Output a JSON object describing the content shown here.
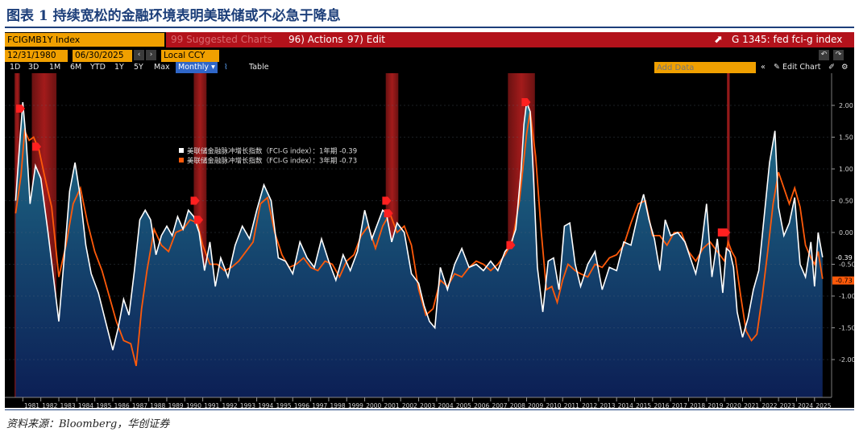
{
  "caption": "图表 1 持续宽松的金融环境表明美联储或不必急于降息",
  "source": "资料来源：Bloomberg，华创证券",
  "terminal": {
    "ticker": "FCIGMB1Y Index",
    "suggested": "99 Suggested Charts",
    "actions": "96) Actions",
    "edit": "97) Edit",
    "title": "G 1345: fed fci-g index",
    "start_date": "12/31/1980",
    "end_date": "06/30/2025",
    "currency": "Local CCY",
    "periods": [
      "1D",
      "3D",
      "1M",
      "6M",
      "YTD",
      "1Y",
      "5Y",
      "Max"
    ],
    "frequency": "Monthly",
    "table_label": "Table",
    "add_data_placeholder": "Add Data",
    "edit_chart": "Edit Chart"
  },
  "colors": {
    "bg": "#000000",
    "area_top": "#1f6f8a",
    "area_bottom": "#0c1f55",
    "white": "#ffffff",
    "orange": "#ff5a0a",
    "recession": "#a01818",
    "bloomberg_orange": "#f0a000",
    "bloomberg_red": "#b3121b"
  },
  "chart_data": {
    "type": "line",
    "title": "",
    "xlabel": "",
    "ylabel": "",
    "ylim": [
      -2.6,
      2.6
    ],
    "yticks": [
      "2.00",
      "1.50",
      "1.00",
      "0.50",
      "0.00",
      "-0.50",
      "-1.00",
      "-1.50",
      "-2.00"
    ],
    "xticks": [
      "1981",
      "1982",
      "1983",
      "1984",
      "1985",
      "1986",
      "1987",
      "1988",
      "1989",
      "1990",
      "1991",
      "1992",
      "1993",
      "1994",
      "1995",
      "1996",
      "1997",
      "1998",
      "1999",
      "2000",
      "2001",
      "2002",
      "2003",
      "2004",
      "2005",
      "2006",
      "2007",
      "2008",
      "2009",
      "2010",
      "2011",
      "2012",
      "2013",
      "2014",
      "2015",
      "2016",
      "2017",
      "2018",
      "2019",
      "2020",
      "2021",
      "2022",
      "2023",
      "2024",
      "2025"
    ],
    "legend": [
      {
        "name": "美联储金融脉冲增长指数（FCI-G index）：1年期 -0.39",
        "color": "#ffffff"
      },
      {
        "name": "美联储金融脉冲增长指数（FCI-G index）：3年期 -0.73",
        "color": "#ff5a0a"
      }
    ],
    "last_value_labels": [
      {
        "text": "-0.39",
        "value": -0.39,
        "color": "#ffffff"
      },
      {
        "text": "-0.73",
        "value": -0.73,
        "color": "#ff5a0a"
      }
    ],
    "recessions": [
      [
        1980.54,
        1980.83
      ],
      [
        1981.5,
        1982.87
      ],
      [
        1990.5,
        1991.21
      ],
      [
        2001.17,
        2001.87
      ],
      [
        2007.96,
        2009.46
      ],
      [
        2020.13,
        2020.29
      ]
    ],
    "series": [
      {
        "name": "1年期",
        "color": "#ffffff",
        "x": [
          1980.6,
          1980.85,
          1981.0,
          1981.2,
          1981.4,
          1981.7,
          1982.0,
          1982.4,
          1982.7,
          1983.0,
          1983.3,
          1983.6,
          1983.9,
          1984.2,
          1984.5,
          1984.8,
          1985.2,
          1985.6,
          1986.0,
          1986.3,
          1986.6,
          1986.9,
          1987.2,
          1987.5,
          1987.8,
          1988.1,
          1988.4,
          1988.7,
          1989.0,
          1989.3,
          1989.6,
          1989.9,
          1990.2,
          1990.5,
          1990.8,
          1991.1,
          1991.4,
          1991.7,
          1992.0,
          1992.4,
          1992.8,
          1993.2,
          1993.6,
          1994.0,
          1994.4,
          1994.8,
          1995.2,
          1995.6,
          1996.0,
          1996.4,
          1996.8,
          1997.2,
          1997.6,
          1998.0,
          1998.4,
          1998.8,
          1999.2,
          1999.6,
          2000.0,
          2000.4,
          2000.8,
          2001.0,
          2001.2,
          2001.5,
          2001.8,
          2002.2,
          2002.6,
          2003.0,
          2003.3,
          2003.6,
          2003.9,
          2004.2,
          2004.6,
          2005.0,
          2005.4,
          2005.8,
          2006.2,
          2006.6,
          2007.0,
          2007.4,
          2007.8,
          2008.1,
          2008.4,
          2008.7,
          2008.85,
          2009.0,
          2009.2,
          2009.4,
          2009.6,
          2009.9,
          2010.2,
          2010.5,
          2010.8,
          2011.1,
          2011.4,
          2011.7,
          2012.0,
          2012.4,
          2012.8,
          2013.2,
          2013.6,
          2014.0,
          2014.4,
          2014.8,
          2015.2,
          2015.5,
          2015.8,
          2016.1,
          2016.4,
          2016.7,
          2017.0,
          2017.4,
          2017.8,
          2018.1,
          2018.4,
          2018.7,
          2019.0,
          2019.3,
          2019.6,
          2019.9,
          2020.1,
          2020.3,
          2020.5,
          2020.7,
          2021.0,
          2021.3,
          2021.6,
          2021.9,
          2022.2,
          2022.5,
          2022.8,
          2023.0,
          2023.3,
          2023.6,
          2023.9,
          2024.2,
          2024.5,
          2024.8,
          2025.0,
          2025.2,
          2025.45
        ],
        "y": [
          0.5,
          1.5,
          2.05,
          1.4,
          0.45,
          1.05,
          0.85,
          0.0,
          -0.7,
          -1.4,
          -0.4,
          0.65,
          1.1,
          0.55,
          -0.2,
          -0.65,
          -0.95,
          -1.4,
          -1.85,
          -1.5,
          -1.05,
          -1.3,
          -0.6,
          0.2,
          0.35,
          0.2,
          -0.35,
          -0.05,
          0.1,
          -0.05,
          0.25,
          0.05,
          0.35,
          0.25,
          0.0,
          -0.6,
          -0.15,
          -0.85,
          -0.4,
          -0.7,
          -0.2,
          0.1,
          -0.1,
          0.35,
          0.75,
          0.5,
          -0.4,
          -0.45,
          -0.65,
          -0.15,
          -0.4,
          -0.55,
          -0.1,
          -0.45,
          -0.75,
          -0.35,
          -0.6,
          -0.3,
          0.35,
          -0.1,
          0.2,
          0.35,
          0.3,
          -0.15,
          0.15,
          0.0,
          -0.65,
          -0.8,
          -1.15,
          -1.4,
          -1.5,
          -0.55,
          -0.9,
          -0.5,
          -0.25,
          -0.55,
          -0.5,
          -0.6,
          -0.45,
          -0.6,
          -0.3,
          -0.2,
          0.05,
          1.0,
          1.7,
          2.05,
          1.9,
          0.75,
          -0.55,
          -1.25,
          -0.45,
          -0.4,
          -0.9,
          0.1,
          0.15,
          -0.5,
          -0.85,
          -0.5,
          -0.3,
          -0.9,
          -0.55,
          -0.6,
          -0.15,
          -0.2,
          0.3,
          0.6,
          0.2,
          -0.1,
          -0.6,
          0.2,
          -0.05,
          0.0,
          -0.15,
          -0.4,
          -0.65,
          -0.25,
          0.45,
          -0.7,
          -0.1,
          -0.95,
          -0.25,
          -0.3,
          -0.55,
          -1.25,
          -1.65,
          -1.35,
          -0.9,
          -0.6,
          0.25,
          1.1,
          1.6,
          0.4,
          -0.05,
          0.15,
          0.55,
          -0.5,
          -0.7,
          -0.15,
          -0.85,
          0.0,
          -0.39
        ]
      },
      {
        "name": "3年期",
        "color": "#ff5a0a",
        "x": [
          1980.6,
          1980.9,
          1981.1,
          1981.35,
          1981.6,
          1981.9,
          1982.2,
          1982.6,
          1983.0,
          1983.4,
          1983.8,
          1984.2,
          1984.6,
          1985.0,
          1985.4,
          1985.8,
          1986.2,
          1986.6,
          1987.0,
          1987.3,
          1987.6,
          1987.9,
          1988.3,
          1988.7,
          1989.1,
          1989.5,
          1989.9,
          1990.3,
          1990.7,
          1991.0,
          1991.4,
          1991.8,
          1992.2,
          1992.6,
          1993.0,
          1993.4,
          1993.8,
          1994.2,
          1994.6,
          1995.0,
          1995.4,
          1995.8,
          1996.2,
          1996.6,
          1997.0,
          1997.4,
          1997.8,
          1998.2,
          1998.6,
          1999.0,
          1999.4,
          1999.8,
          2000.2,
          2000.6,
          2001.0,
          2001.4,
          2001.8,
          2002.2,
          2002.6,
          2003.0,
          2003.4,
          2003.8,
          2004.2,
          2004.6,
          2005.0,
          2005.4,
          2005.8,
          2006.2,
          2006.6,
          2007.0,
          2007.4,
          2007.8,
          2008.2,
          2008.6,
          2009.0,
          2009.2,
          2009.5,
          2009.8,
          2010.1,
          2010.4,
          2010.7,
          2011.0,
          2011.3,
          2011.7,
          2012.0,
          2012.4,
          2012.8,
          2013.2,
          2013.6,
          2014.0,
          2014.4,
          2014.8,
          2015.2,
          2015.6,
          2016.0,
          2016.4,
          2016.8,
          2017.2,
          2017.6,
          2018.0,
          2018.4,
          2018.8,
          2019.2,
          2019.6,
          2020.0,
          2020.2,
          2020.4,
          2020.6,
          2020.9,
          2021.2,
          2021.5,
          2021.8,
          2022.1,
          2022.4,
          2022.7,
          2023.0,
          2023.3,
          2023.6,
          2023.9,
          2024.2,
          2024.5,
          2024.8,
          2025.0,
          2025.2,
          2025.45
        ],
        "y": [
          0.3,
          0.9,
          1.6,
          1.45,
          1.5,
          1.3,
          0.9,
          0.4,
          -0.7,
          -0.2,
          0.45,
          0.7,
          0.15,
          -0.3,
          -0.6,
          -1.0,
          -1.4,
          -1.7,
          -1.75,
          -2.1,
          -1.2,
          -0.6,
          0.05,
          -0.2,
          -0.3,
          0.0,
          0.05,
          0.2,
          0.15,
          -0.2,
          -0.5,
          -0.5,
          -0.6,
          -0.55,
          -0.45,
          -0.3,
          -0.15,
          0.45,
          0.55,
          0.0,
          -0.35,
          -0.55,
          -0.5,
          -0.4,
          -0.55,
          -0.6,
          -0.45,
          -0.5,
          -0.7,
          -0.45,
          -0.35,
          -0.05,
          0.1,
          -0.25,
          0.1,
          0.3,
          0.0,
          0.1,
          -0.2,
          -0.9,
          -1.3,
          -1.2,
          -0.75,
          -0.85,
          -0.65,
          -0.7,
          -0.55,
          -0.45,
          -0.5,
          -0.6,
          -0.5,
          -0.35,
          -0.15,
          0.5,
          1.55,
          1.9,
          1.2,
          0.05,
          -0.9,
          -0.85,
          -1.1,
          -0.75,
          -0.5,
          -0.6,
          -0.65,
          -0.7,
          -0.5,
          -0.55,
          -0.4,
          -0.35,
          -0.2,
          0.15,
          0.45,
          0.5,
          -0.05,
          -0.05,
          -0.2,
          0.0,
          0.0,
          -0.3,
          -0.45,
          -0.25,
          -0.15,
          -0.3,
          -0.45,
          -0.15,
          -0.3,
          -0.4,
          -1.0,
          -1.55,
          -1.7,
          -1.6,
          -1.0,
          -0.3,
          0.45,
          0.95,
          0.7,
          0.45,
          0.7,
          0.4,
          -0.2,
          -0.4,
          -0.5,
          -0.3,
          -0.73
        ]
      }
    ]
  }
}
